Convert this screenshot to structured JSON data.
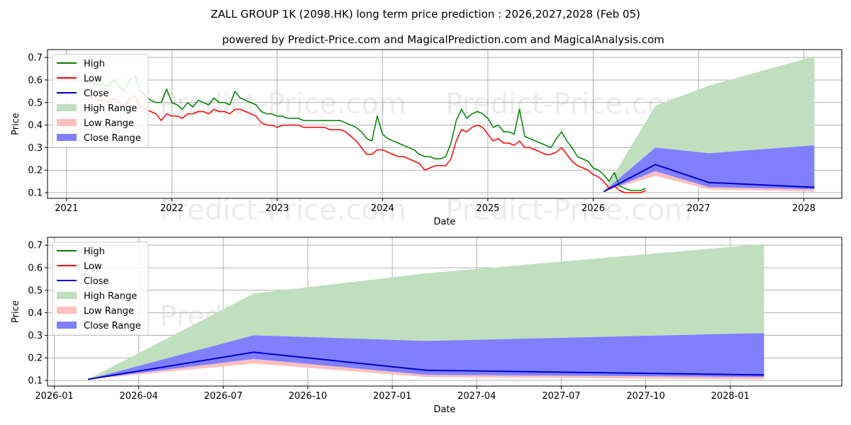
{
  "header": {
    "title": "ZALL GROUP 1K (2098.HK) long term price prediction : 2026,2027,2028 (Feb 05)",
    "subtitle": "powered by Predict-Price.com and MagicalPrediction.com and MagicalAnalysis.com"
  },
  "watermark": "Predict-Price.com",
  "colors": {
    "high": "#008000",
    "low": "#ff0000",
    "close": "#0000cc",
    "high_range": "#bfdfbf",
    "low_range": "#ffbfbf",
    "close_range": "#8080ff"
  },
  "legend": [
    "High",
    "Low",
    "Close",
    "High Range",
    "Low Range",
    "Close Range"
  ],
  "chart_data": [
    {
      "type": "line",
      "name": "history-and-forecast",
      "xlabel": "Date",
      "ylabel": "Price",
      "xlim": [
        2020.82,
        2028.36
      ],
      "ylim": [
        0.075,
        0.735
      ],
      "x_ticks": [
        2021,
        2022,
        2023,
        2024,
        2025,
        2026,
        2027,
        2028
      ],
      "x_tick_labels": [
        "2021",
        "2022",
        "2023",
        "2024",
        "2025",
        "2026",
        "2027",
        "2028"
      ],
      "y_ticks": [
        0.1,
        0.2,
        0.3,
        0.4,
        0.5,
        0.6,
        0.7
      ],
      "y_tick_labels": [
        "0.1",
        "0.2",
        "0.3",
        "0.4",
        "0.5",
        "0.6",
        "0.7"
      ],
      "history_start_year": 2021.2,
      "history_step_years": 0.05,
      "history_high": [
        0.6,
        0.59,
        0.58,
        0.58,
        0.57,
        0.6,
        0.57,
        0.55,
        0.6,
        0.62,
        0.55,
        0.53,
        0.51,
        0.5,
        0.5,
        0.56,
        0.5,
        0.49,
        0.47,
        0.5,
        0.48,
        0.51,
        0.5,
        0.49,
        0.52,
        0.5,
        0.5,
        0.49,
        0.55,
        0.52,
        0.51,
        0.5,
        0.49,
        0.46,
        0.45,
        0.45,
        0.44,
        0.44,
        0.43,
        0.43,
        0.43,
        0.42,
        0.42,
        0.42,
        0.42,
        0.42,
        0.42,
        0.42,
        0.42,
        0.41,
        0.4,
        0.39,
        0.37,
        0.34,
        0.33,
        0.44,
        0.36,
        0.34,
        0.33,
        0.32,
        0.31,
        0.3,
        0.29,
        0.27,
        0.26,
        0.26,
        0.25,
        0.25,
        0.26,
        0.32,
        0.42,
        0.47,
        0.43,
        0.45,
        0.46,
        0.45,
        0.43,
        0.39,
        0.4,
        0.37,
        0.37,
        0.36,
        0.47,
        0.35,
        0.34,
        0.33,
        0.32,
        0.31,
        0.3,
        0.34,
        0.37,
        0.33,
        0.3,
        0.26,
        0.25,
        0.24,
        0.21,
        0.2,
        0.18,
        0.15,
        0.19,
        0.13,
        0.12,
        0.11,
        0.11,
        0.11,
        0.12
      ],
      "history_low": [
        0.53,
        0.52,
        0.51,
        0.51,
        0.5,
        0.52,
        0.5,
        0.48,
        0.52,
        0.53,
        0.48,
        0.47,
        0.46,
        0.45,
        0.42,
        0.45,
        0.44,
        0.44,
        0.43,
        0.45,
        0.45,
        0.46,
        0.46,
        0.45,
        0.47,
        0.46,
        0.46,
        0.45,
        0.47,
        0.47,
        0.46,
        0.45,
        0.44,
        0.41,
        0.4,
        0.4,
        0.39,
        0.4,
        0.4,
        0.4,
        0.4,
        0.39,
        0.39,
        0.39,
        0.39,
        0.39,
        0.38,
        0.38,
        0.38,
        0.37,
        0.35,
        0.33,
        0.3,
        0.27,
        0.27,
        0.29,
        0.29,
        0.28,
        0.27,
        0.26,
        0.26,
        0.25,
        0.24,
        0.23,
        0.2,
        0.21,
        0.22,
        0.22,
        0.22,
        0.25,
        0.33,
        0.38,
        0.37,
        0.39,
        0.4,
        0.39,
        0.36,
        0.33,
        0.34,
        0.32,
        0.32,
        0.31,
        0.33,
        0.3,
        0.3,
        0.29,
        0.28,
        0.27,
        0.27,
        0.28,
        0.3,
        0.27,
        0.24,
        0.22,
        0.21,
        0.2,
        0.18,
        0.17,
        0.15,
        0.12,
        0.13,
        0.11,
        0.1,
        0.1,
        0.1,
        0.1,
        0.11
      ],
      "forecast_x": [
        2026.1,
        2026.59,
        2027.1,
        2028.1
      ],
      "forecast_close": [
        0.105,
        0.225,
        0.145,
        0.124
      ],
      "high_range_upper": [
        0.105,
        0.485,
        0.575,
        0.705
      ],
      "low_range_lower": [
        0.105,
        0.175,
        0.115,
        0.105
      ],
      "close_range_upper": [
        0.105,
        0.3,
        0.275,
        0.31
      ],
      "close_range_lower": [
        0.105,
        0.195,
        0.125,
        0.115
      ]
    },
    {
      "type": "area",
      "name": "forecast-zoom",
      "xlabel": "Date",
      "ylabel": "Price",
      "xlim": [
        2025.98,
        2028.33
      ],
      "ylim": [
        0.075,
        0.735
      ],
      "x_ticks": [
        2026.0,
        2026.25,
        2026.5,
        2026.75,
        2027.0,
        2027.25,
        2027.5,
        2027.75,
        2028.0
      ],
      "x_tick_labels": [
        "2026-01",
        "2026-04",
        "2026-07",
        "2026-10",
        "2027-01",
        "2027-04",
        "2027-07",
        "2027-10",
        "2028-01"
      ],
      "y_ticks": [
        0.1,
        0.2,
        0.3,
        0.4,
        0.5,
        0.6,
        0.7
      ],
      "y_tick_labels": [
        "0.1",
        "0.2",
        "0.3",
        "0.4",
        "0.5",
        "0.6",
        "0.7"
      ],
      "forecast_x": [
        2026.1,
        2026.59,
        2027.1,
        2028.1
      ],
      "forecast_close": [
        0.105,
        0.225,
        0.145,
        0.124
      ],
      "high_range_upper": [
        0.105,
        0.485,
        0.575,
        0.705
      ],
      "low_range_lower": [
        0.105,
        0.175,
        0.115,
        0.105
      ],
      "close_range_upper": [
        0.105,
        0.3,
        0.275,
        0.31
      ],
      "close_range_lower": [
        0.105,
        0.195,
        0.125,
        0.115
      ]
    }
  ]
}
